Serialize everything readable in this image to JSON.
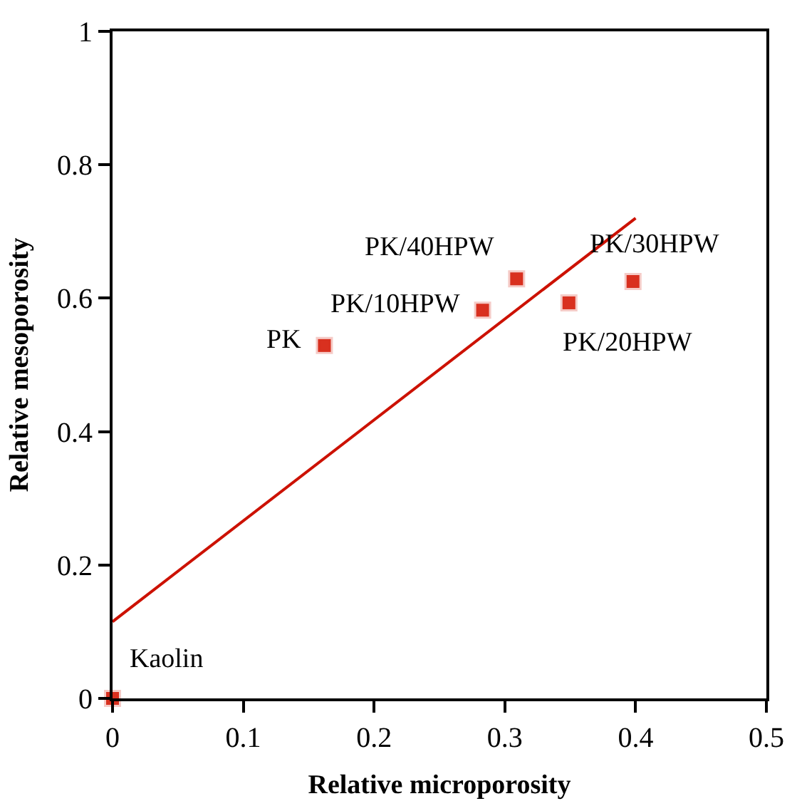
{
  "chart_data": {
    "type": "scatter",
    "xlabel": "Relative microporosity",
    "ylabel": "Relative mesoporosity",
    "x": [
      0,
      0.162,
      0.283,
      0.309,
      0.349,
      0.398
    ],
    "series": [
      {
        "marker": "square",
        "color": "#d9301f",
        "values": [
          0,
          0.529,
          0.582,
          0.629,
          0.593,
          0.625
        ]
      },
      {
        "type": "line",
        "marker": "none",
        "color": "#cc1100",
        "x": [
          0,
          0.4
        ],
        "values": [
          0.115,
          0.72
        ]
      }
    ],
    "annotations": [
      {
        "text": "Kaolin",
        "x": 0,
        "y": 0
      },
      {
        "text": "PK",
        "x": 0.162,
        "y": 0.529
      },
      {
        "text": "PK/10HPW",
        "x": 0.283,
        "y": 0.582
      },
      {
        "text": "PK/40HPW",
        "x": 0.309,
        "y": 0.629
      },
      {
        "text": "PK/20HPW",
        "x": 0.349,
        "y": 0.593
      },
      {
        "text": "PK/30HPW",
        "x": 0.398,
        "y": 0.625
      }
    ],
    "xlim": [
      0,
      0.5
    ],
    "xticks": [
      0,
      0.1,
      0.2,
      0.3,
      0.4,
      0.5
    ],
    "ylim": [
      0,
      1
    ],
    "yticks": [
      0,
      0.2,
      0.4,
      0.6,
      0.8,
      1
    ],
    "line_style": "solid"
  }
}
